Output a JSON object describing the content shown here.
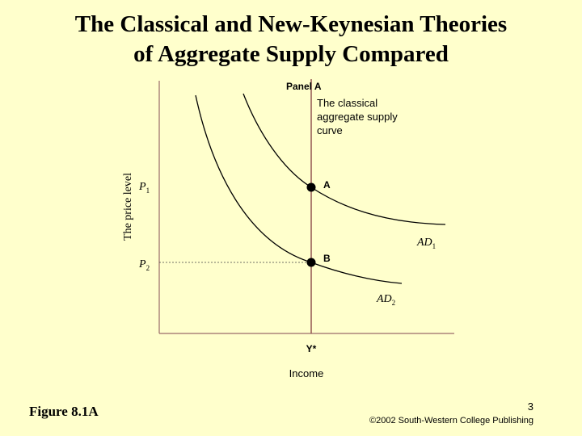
{
  "title": {
    "line1": "The Classical and New-Keynesian Theories",
    "line2": "of Aggregate Supply Compared"
  },
  "diagram": {
    "panel_label": "Panel A",
    "as_label": [
      "The classical",
      "aggregate supply",
      "curve"
    ],
    "y_axis_label": "The price level",
    "x_axis_label": "Income",
    "p1_label": "P",
    "p1_sub": "1",
    "p2_label": "P",
    "p2_sub": "2",
    "ystar_label": "Y*",
    "point_a_label": "A",
    "point_b_label": "B",
    "ad1_label": "AD",
    "ad1_sub": "1",
    "ad2_label": "AD",
    "ad2_sub": "2",
    "colors": {
      "axis": "#9a6a6a",
      "curve": "#000000",
      "vertical_line": "#8b4a4a",
      "dashed": "#444444"
    }
  },
  "footer": {
    "figure_label": "Figure 8.1A",
    "page_number": "3",
    "copyright": "©2002 South-Western College Publishing"
  }
}
